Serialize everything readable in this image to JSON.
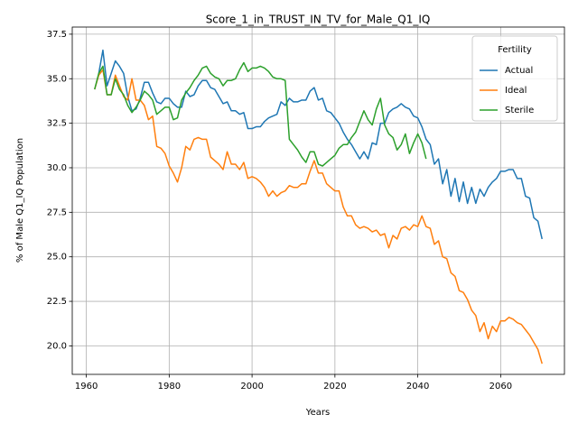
{
  "chart_data": {
    "type": "line",
    "title": "Score_1_in_TRUST_IN_TV_for_Male_Q1_IQ",
    "xlabel": "Years",
    "ylabel": "% of Male Q1_IQ Population",
    "legend_title": "Fertility",
    "legend_loc": "upper right",
    "grid": true,
    "x": [
      1962,
      1963,
      1964,
      1965,
      1966,
      1967,
      1968,
      1969,
      1970,
      1971,
      1972,
      1973,
      1974,
      1975,
      1976,
      1977,
      1978,
      1979,
      1980,
      1981,
      1982,
      1983,
      1984,
      1985,
      1986,
      1987,
      1988,
      1989,
      1990,
      1991,
      1992,
      1993,
      1994,
      1995,
      1996,
      1997,
      1998,
      1999,
      2000,
      2001,
      2002,
      2003,
      2004,
      2005,
      2006,
      2007,
      2008,
      2009,
      2010,
      2011,
      2012,
      2013,
      2014,
      2015,
      2016,
      2017,
      2018,
      2019,
      2020,
      2021,
      2022,
      2023,
      2024,
      2025,
      2026,
      2027,
      2028,
      2029,
      2030,
      2031,
      2032,
      2033,
      2034,
      2035,
      2036,
      2037,
      2038,
      2039,
      2040,
      2041,
      2042,
      2043,
      2044,
      2045,
      2046,
      2047,
      2048,
      2049,
      2050,
      2051,
      2052,
      2053,
      2054,
      2055,
      2056,
      2057,
      2058,
      2059,
      2060,
      2061,
      2062,
      2063,
      2064,
      2065,
      2066,
      2067,
      2068,
      2069,
      2070
    ],
    "series": [
      {
        "name": "Actual",
        "color": "#1f77b4",
        "values": [
          null,
          35.3,
          36.6,
          34.6,
          35.3,
          36.0,
          35.7,
          35.3,
          34.0,
          33.2,
          33.3,
          33.9,
          34.8,
          34.8,
          34.2,
          33.7,
          33.6,
          33.9,
          33.9,
          33.6,
          33.4,
          33.4,
          34.3,
          34.0,
          34.1,
          34.6,
          34.9,
          34.9,
          34.5,
          34.4,
          34.0,
          33.6,
          33.7,
          33.2,
          33.2,
          33.0,
          33.1,
          32.2,
          32.2,
          32.3,
          32.3,
          32.6,
          32.8,
          32.9,
          33.0,
          33.7,
          33.5,
          33.9,
          33.7,
          33.7,
          33.8,
          33.8,
          34.3,
          34.5,
          33.8,
          33.9,
          33.2,
          33.1,
          32.8,
          32.5,
          32.0,
          31.6,
          31.3,
          30.9,
          30.5,
          30.9,
          30.5,
          31.4,
          31.3,
          32.5,
          32.5,
          33.1,
          33.3,
          33.4,
          33.6,
          33.4,
          33.3,
          32.9,
          32.8,
          32.3,
          31.6,
          31.3,
          30.2,
          30.5,
          29.1,
          29.9,
          28.4,
          29.4,
          28.1,
          29.2,
          28.0,
          28.9,
          28.0,
          28.8,
          28.4,
          28.9,
          29.2,
          29.4,
          29.8,
          29.8,
          29.9,
          29.9,
          29.4,
          29.4,
          28.4,
          28.3,
          27.2,
          27.0,
          26.0
        ]
      },
      {
        "name": "Ideal",
        "color": "#ff7f0e",
        "values": [
          34.4,
          35.2,
          35.5,
          34.1,
          34.1,
          35.2,
          34.6,
          34.0,
          33.8,
          35.0,
          33.8,
          33.8,
          33.5,
          32.7,
          32.9,
          31.2,
          31.1,
          30.8,
          30.1,
          29.7,
          29.2,
          30.0,
          31.2,
          31.0,
          31.6,
          31.7,
          31.6,
          31.6,
          30.6,
          30.4,
          30.2,
          29.9,
          30.9,
          30.2,
          30.2,
          29.9,
          30.3,
          29.4,
          29.5,
          29.4,
          29.2,
          28.9,
          28.4,
          28.7,
          28.4,
          28.6,
          28.7,
          29.0,
          28.9,
          28.9,
          29.1,
          29.1,
          29.8,
          30.4,
          29.7,
          29.7,
          29.1,
          28.9,
          28.7,
          28.7,
          27.8,
          27.3,
          27.3,
          26.8,
          26.6,
          26.7,
          26.6,
          26.4,
          26.5,
          26.2,
          26.3,
          25.5,
          26.2,
          26.0,
          26.6,
          26.7,
          26.5,
          26.8,
          26.7,
          27.3,
          26.7,
          26.6,
          25.7,
          25.9,
          25.0,
          24.9,
          24.1,
          23.9,
          23.1,
          23.0,
          22.6,
          22.0,
          21.7,
          20.8,
          21.3,
          20.4,
          21.1,
          20.8,
          21.4,
          21.4,
          21.6,
          21.5,
          21.3,
          21.2,
          20.9,
          20.6,
          20.2,
          19.8,
          19.0
        ]
      },
      {
        "name": "Sterile",
        "color": "#2ca02c",
        "values": [
          34.4,
          35.3,
          35.7,
          34.1,
          34.1,
          35.0,
          34.4,
          34.1,
          33.5,
          33.1,
          33.4,
          33.8,
          34.3,
          34.1,
          33.8,
          33.0,
          33.2,
          33.4,
          33.4,
          32.7,
          32.8,
          33.8,
          34.2,
          34.5,
          34.9,
          35.2,
          35.6,
          35.7,
          35.3,
          35.1,
          35.0,
          34.6,
          34.9,
          34.9,
          35.0,
          35.5,
          35.9,
          35.4,
          35.6,
          35.6,
          35.7,
          35.6,
          35.4,
          35.1,
          35.0,
          35.0,
          34.9,
          31.6,
          31.3,
          31.0,
          30.6,
          30.3,
          30.9,
          30.9,
          30.2,
          30.1,
          30.3,
          30.5,
          30.7,
          31.1,
          31.3,
          31.3,
          31.7,
          32.0,
          32.6,
          33.2,
          32.7,
          32.4,
          33.3,
          33.9,
          32.4,
          31.9,
          31.7,
          31.0,
          31.3,
          31.9,
          30.8,
          31.4,
          31.9,
          31.4,
          30.5,
          null,
          null,
          null,
          null,
          null,
          null,
          null,
          null,
          null,
          null,
          null,
          null,
          null,
          null,
          null,
          null,
          null,
          null,
          null,
          null,
          null,
          null,
          null,
          null,
          null,
          null,
          null,
          null
        ]
      }
    ],
    "xlim": [
      1956.6,
      2075.4
    ],
    "ylim": [
      18.4,
      37.9
    ],
    "xticks": [
      1960,
      1980,
      2000,
      2020,
      2040,
      2060
    ],
    "yticks": [
      {
        "value": 20,
        "label": "20.0"
      },
      22.5,
      {
        "value": 25,
        "label": "25.0"
      },
      27.5,
      {
        "value": 30,
        "label": "30.0"
      },
      32.5,
      {
        "value": 35,
        "label": "35.0"
      },
      37.5
    ]
  }
}
